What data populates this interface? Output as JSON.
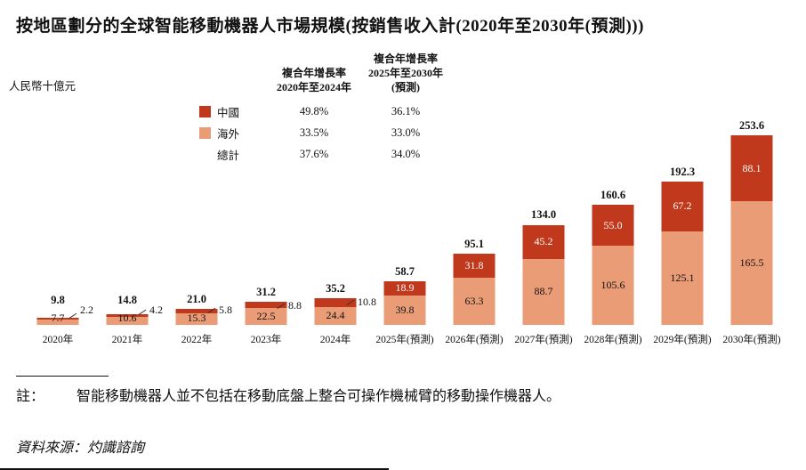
{
  "page": {
    "title": "按地區劃分的全球智能移動機器人市場規模(按銷售收入計(2020年至2030年(預測)))",
    "unit_label": "人民幣十億元",
    "note_label": "註：",
    "note_text": "智能移動機器人並不包括在移動底盤上整合可操作機械臂的移動操作機器人。",
    "source": "資料來源：灼識諮詢"
  },
  "colors": {
    "china": "#C0391D",
    "overseas": "#E99C76"
  },
  "cagr": {
    "col1_header_lines": [
      "複合年增長率",
      "2020年至2024年"
    ],
    "col2_header_lines": [
      "複合年增長率",
      "2025年至2030年",
      "(預測)"
    ],
    "rows": [
      {
        "label": "中國",
        "swatch": "china",
        "v1": "49.8%",
        "v2": "36.1%"
      },
      {
        "label": "海外",
        "swatch": "overseas",
        "v1": "33.5%",
        "v2": "33.0%"
      },
      {
        "label": "總計",
        "swatch": "none",
        "v1": "37.6%",
        "v2": "34.0%"
      }
    ]
  },
  "chart_data": {
    "type": "bar",
    "stacked": true,
    "title": "按地區劃分的全球智能移動機器人市場規模(按銷售收入計(2020年至2030年(預測)))",
    "ylabel": "人民幣十億元",
    "xlabel": "",
    "ylim": [
      0,
      260
    ],
    "grid": false,
    "legend_position": "upper-left",
    "categories": [
      "2020年",
      "2021年",
      "2022年",
      "2023年",
      "2024年",
      "2025年(預測)",
      "2026年(預測)",
      "2027年(預測)",
      "2028年(預測)",
      "2029年(預測)",
      "2030年(預測)"
    ],
    "series": [
      {
        "name": "海外",
        "color": "#E99C76",
        "values": [
          7.7,
          10.6,
          15.3,
          22.5,
          24.4,
          39.8,
          63.3,
          88.7,
          105.6,
          125.1,
          165.5
        ]
      },
      {
        "name": "中國",
        "color": "#C0391D",
        "values": [
          2.2,
          4.2,
          5.8,
          8.8,
          10.8,
          18.9,
          31.8,
          45.2,
          55.0,
          67.2,
          88.1
        ]
      }
    ],
    "totals": [
      9.8,
      14.8,
      21.0,
      31.2,
      35.2,
      58.7,
      95.1,
      134.0,
      160.6,
      192.3,
      253.6
    ]
  }
}
